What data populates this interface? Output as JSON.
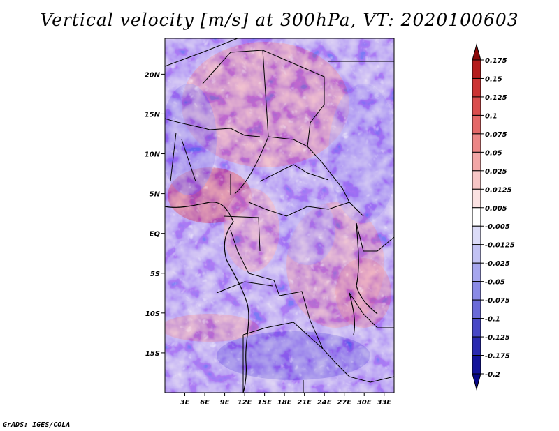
{
  "title": "Vertical velocity [m/s] at 300hPa, VT: 2020100603",
  "credit": "GrADS: IGES/COLA",
  "map": {
    "lat_labels": [
      "20N",
      "15N",
      "10N",
      "5N",
      "EQ",
      "5S",
      "10S",
      "15S"
    ],
    "lat_values": [
      20,
      15,
      10,
      5,
      0,
      -5,
      -10,
      -15
    ],
    "lon_labels": [
      "3E",
      "6E",
      "9E",
      "12E",
      "15E",
      "18E",
      "21E",
      "24E",
      "27E",
      "30E",
      "33E"
    ],
    "lon_values": [
      3,
      6,
      9,
      12,
      15,
      18,
      21,
      24,
      27,
      30,
      33
    ],
    "lon_range": [
      0,
      34.5
    ],
    "lat_range": [
      -20,
      24.5
    ]
  },
  "colorbar": {
    "labels": [
      "0.175",
      "0.15",
      "0.125",
      "0.1",
      "0.075",
      "0.05",
      "0.025",
      "0.0125",
      "0.005",
      "-0.005",
      "-0.0125",
      "-0.025",
      "-0.05",
      "-0.075",
      "-0.1",
      "-0.125",
      "-0.175",
      "-0.2"
    ],
    "colors": [
      "#8b0a0a",
      "#b51c1c",
      "#cc3434",
      "#da4e4e",
      "#e46868",
      "#ec8686",
      "#f2a6a6",
      "#f7c6c6",
      "#fbe2e2",
      "#ffffff",
      "#dcdcf8",
      "#c2c2f3",
      "#a6a6ee",
      "#8a8ae6",
      "#6a6ad8",
      "#4848c6",
      "#2a2ab0",
      "#14149a",
      "#080888"
    ]
  }
}
